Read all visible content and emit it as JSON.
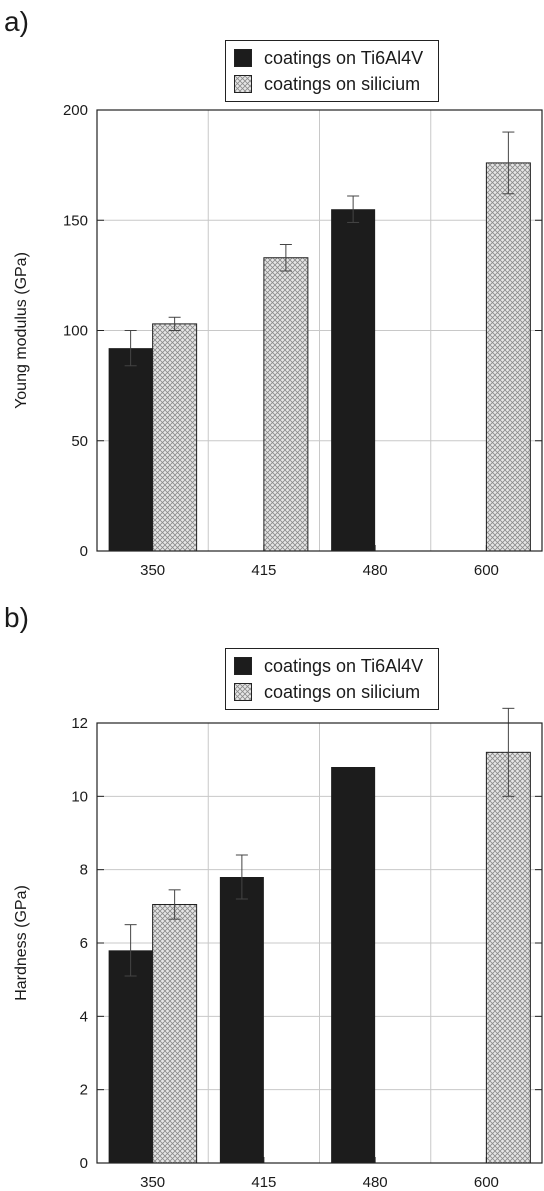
{
  "colors": {
    "solid": "#1c1c1c",
    "hatch": "#8a8a8a",
    "grid": "#c8c8c8",
    "axis": "#222222"
  },
  "legend": {
    "ti_label": "coatings on Ti6Al4V",
    "si_label": "coatings on silicium"
  },
  "chart_data": [
    {
      "panel": "a)",
      "type": "bar",
      "ylabel": "Young modulus (GPa)",
      "ylim": [
        0,
        200
      ],
      "yticks": [
        0,
        50,
        100,
        150,
        200
      ],
      "categories": [
        "350",
        "415",
        "480",
        "600"
      ],
      "grid": true,
      "legend_position": "top-center",
      "series": [
        {
          "name": "coatings on Ti6Al4V",
          "values": [
            92,
            null,
            155,
            null
          ],
          "errors": [
            8,
            null,
            6,
            null
          ]
        },
        {
          "name": "coatings on silicium",
          "values": [
            103,
            133,
            null,
            176
          ],
          "errors": [
            3,
            6,
            null,
            14
          ]
        }
      ]
    },
    {
      "panel": "b)",
      "type": "bar",
      "ylabel": "Hardness (GPa)",
      "ylim": [
        0,
        12
      ],
      "yticks": [
        0,
        2,
        4,
        6,
        8,
        10,
        12
      ],
      "categories": [
        "350",
        "415",
        "480",
        "600"
      ],
      "grid": true,
      "legend_position": "top-center",
      "series": [
        {
          "name": "coatings on Ti6Al4V",
          "values": [
            5.8,
            7.8,
            10.8,
            null
          ],
          "errors": [
            0.7,
            0.6,
            null,
            null
          ]
        },
        {
          "name": "coatings on silicium",
          "values": [
            7.05,
            null,
            null,
            11.2
          ],
          "errors": [
            0.4,
            null,
            null,
            1.2
          ]
        }
      ]
    }
  ]
}
